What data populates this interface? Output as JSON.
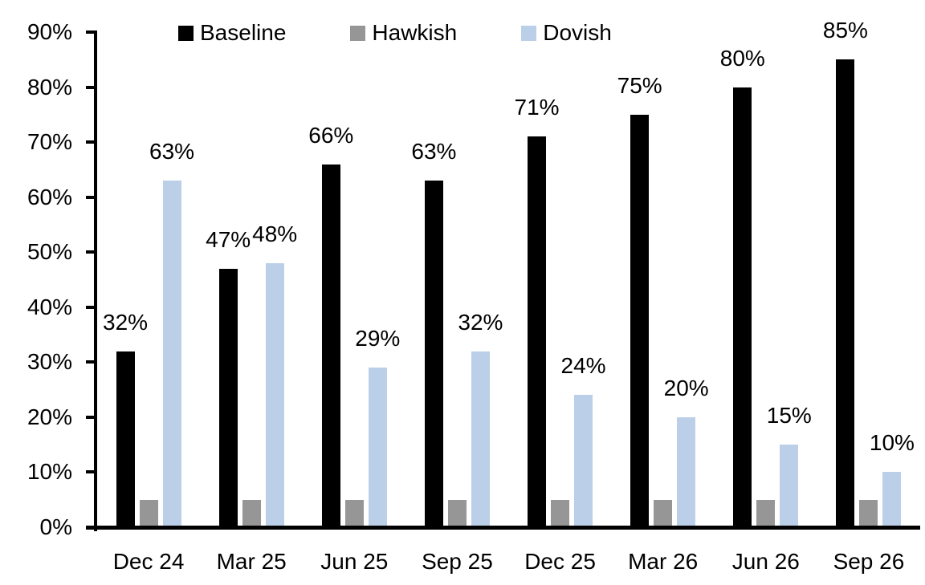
{
  "chart_data": {
    "type": "bar",
    "title": "",
    "xlabel": "",
    "ylabel": "",
    "categories": [
      "Dec 24",
      "Mar 25",
      "Jun 25",
      "Sep 25",
      "Dec 25",
      "Mar 26",
      "Jun 26",
      "Sep 26"
    ],
    "series": [
      {
        "name": "Baseline",
        "color": "#000000",
        "values": [
          32,
          47,
          66,
          63,
          71,
          75,
          80,
          85
        ],
        "labels": [
          "32%",
          "47%",
          "66%",
          "63%",
          "71%",
          "75%",
          "80%",
          "85%"
        ]
      },
      {
        "name": "Hawkish",
        "color": "#969696",
        "values": [
          5,
          5,
          5,
          5,
          5,
          5,
          5,
          5
        ],
        "labels": [
          "",
          "",
          "",
          "",
          "",
          "",
          "",
          ""
        ]
      },
      {
        "name": "Dovish",
        "color": "#BCCFE8",
        "values": [
          63,
          48,
          29,
          32,
          24,
          20,
          15,
          10
        ],
        "labels": [
          "63%",
          "48%",
          "29%",
          "32%",
          "24%",
          "20%",
          "15%",
          "10%"
        ]
      }
    ],
    "ylim": [
      0,
      90
    ],
    "ytick_step": 10,
    "ytick_labels": [
      "0%",
      "10%",
      "20%",
      "30%",
      "40%",
      "50%",
      "60%",
      "70%",
      "80%",
      "90%"
    ],
    "legend_position": "top",
    "legend_labels": [
      "Baseline",
      "Hawkish",
      "Dovish"
    ],
    "grid": false,
    "axis_color": "#000000",
    "background_color": "#FFFFFF"
  }
}
